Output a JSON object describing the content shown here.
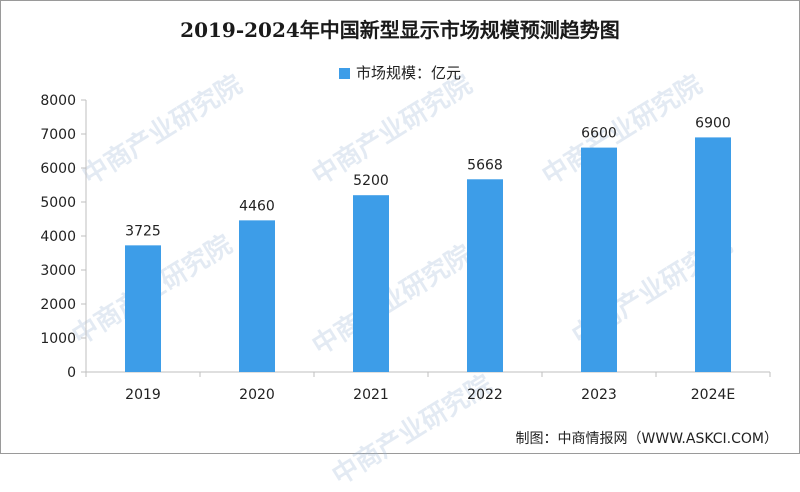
{
  "header": {
    "title": "2019-2024年中国新型显示市场规模预测趋势图"
  },
  "legend": {
    "label": "市场规模：亿元"
  },
  "footer": {
    "source": "制图：中商情报网（WWW.ASKCI.COM）"
  },
  "watermark": {
    "text": "中商产业研究院"
  },
  "colors": {
    "bar": "#3d9de8",
    "axis": "#bfbfbf"
  },
  "chart_data": {
    "type": "bar",
    "categories": [
      "2019",
      "2020",
      "2021",
      "2022",
      "2023",
      "2024E"
    ],
    "series": [
      {
        "name": "市场规模：亿元",
        "values": [
          3725,
          4460,
          5200,
          5668,
          6600,
          6900
        ]
      }
    ],
    "ylim": [
      0,
      8000
    ],
    "yticks": [
      0,
      1000,
      2000,
      3000,
      4000,
      5000,
      6000,
      7000,
      8000
    ],
    "grid": false,
    "legend_position": "top-center",
    "data_labels": true
  }
}
